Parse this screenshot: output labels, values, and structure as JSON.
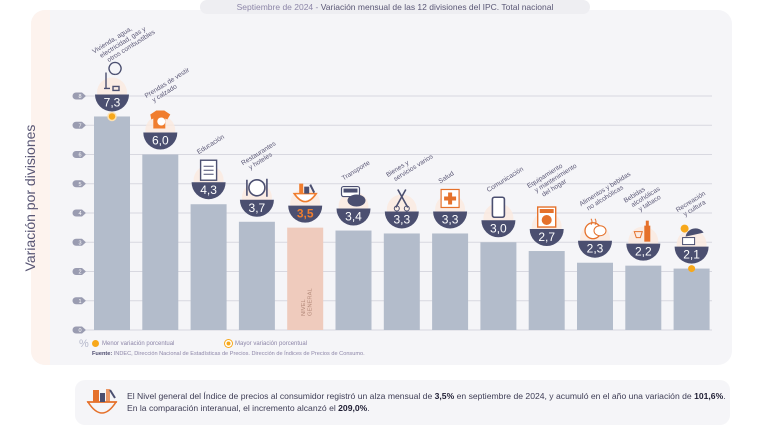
{
  "title": {
    "date": "Septiembre de 2024",
    "separator": " - ",
    "text": "Variación mensual de las 12 divisiones del IPC. Total nacional"
  },
  "chart_data": {
    "type": "bar",
    "title": "Septiembre de 2024 - Variación mensual de las 12 divisiones del IPC. Total nacional",
    "ylabel": "Variación por divisiones",
    "yunit": "%",
    "ylim": [
      0,
      8
    ],
    "yticks": [
      "0",
      "1",
      "2",
      "3",
      "4",
      "5",
      "6",
      "7",
      "8"
    ],
    "grid": true,
    "categories": [
      "Vivienda, agua, electricidad, gas y otros combustibles",
      "Prendas de vestir y calzado",
      "Educación",
      "Restaurantes y hoteles",
      "Nivel general",
      "Transporte",
      "Bienes y servicios varios",
      "Salud",
      "Comunicación",
      "Equipamiento y mantenimiento del hogar",
      "Alimentos y bebidas no alcohólicas",
      "Bebidas alcohólicas y tabaco",
      "Recreación y cultura"
    ],
    "values": [
      7.3,
      6.0,
      4.3,
      3.7,
      3.5,
      3.4,
      3.3,
      3.3,
      3.0,
      2.7,
      2.3,
      2.2,
      2.1
    ],
    "value_labels": [
      "7,3",
      "6,0",
      "4,3",
      "3,7",
      "3,5",
      "3,4",
      "3,3",
      "3,3",
      "3,0",
      "2,7",
      "2,3",
      "2,2",
      "2,1"
    ],
    "label_lines": [
      [
        "Vivienda, agua,",
        "electricidad, gas y",
        "otros combustibles"
      ],
      [
        "Prendas de vestir",
        "y calzado"
      ],
      [
        "Educación"
      ],
      [
        "Restaurantes",
        "y hoteles"
      ],
      [],
      [
        "Transporte"
      ],
      [
        "Bienes y",
        "servicios varios"
      ],
      [
        "Salud"
      ],
      [
        "Comunicación"
      ],
      [
        "Equipamiento",
        "y mantenimiento",
        "del hogar"
      ],
      [
        "Alimentos y bebidas",
        "no alcohólicas"
      ],
      [
        "Bebidas",
        "alcohólicas",
        "y tabaco"
      ],
      [
        "Recreación",
        "y cultura"
      ]
    ],
    "icons": [
      "house-utilities-icon",
      "tshirt-icon",
      "notebook-icon",
      "plate-cutlery-icon",
      "shopping-basket-icon",
      "transit-card-icon",
      "scissors-comb-icon",
      "first-aid-icon",
      "smartphone-icon",
      "washing-machine-icon",
      "roast-chicken-icon",
      "wine-bottle-icon",
      "beach-umbrella-icon"
    ],
    "highlight_index": 4,
    "highlight_inner_label": [
      "NIVEL",
      "GENERAL"
    ],
    "max_marker_index": 0,
    "min_marker_index": 12,
    "legend": [
      {
        "label": "Menor variación porcentual",
        "marker": "dot"
      },
      {
        "label": "Mayor variación porcentual",
        "marker": "ring"
      }
    ],
    "colors": {
      "bar": "#b3bccb",
      "highlight_bar": "#efcbbd",
      "bubble": "#4b4f70",
      "highlight_value": "#f07d2e",
      "marker": "#f7a81b",
      "accent": "#e5712b"
    }
  },
  "source": {
    "label": "Fuente:",
    "text": " INDEC, Dirección Nacional de Estadísticas de Precios. Dirección de Índices de Precios de Consumo."
  },
  "footer": {
    "parts": [
      {
        "t": "El Nivel general del Índice de precios al consumidor registró un alza mensual de ",
        "b": false
      },
      {
        "t": "3,5%",
        "b": true
      },
      {
        "t": " en septiembre de 2024, y acumuló en el año una variación de ",
        "b": false
      },
      {
        "t": "101,6%",
        "b": true
      },
      {
        "t": ". En la comparación interanual, el incremento alcanzó el ",
        "b": false
      },
      {
        "t": "209,0%",
        "b": true
      },
      {
        "t": ".",
        "b": false
      }
    ]
  }
}
